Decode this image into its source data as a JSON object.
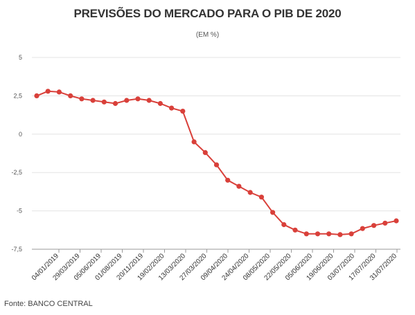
{
  "header": {
    "title": "PREVISÕES DO MERCADO PARA O PIB DE 2020",
    "subtitle": "(EM %)"
  },
  "footer": {
    "source": "Fonte: BANCO CENTRAL"
  },
  "colors": {
    "line": "#d9403a",
    "grid": "#e3e3e3",
    "axis": "#999999"
  },
  "chart_data": {
    "type": "line",
    "title": "PREVISÕES DO MERCADO PARA O PIB DE 2020",
    "subtitle": "(EM %)",
    "ylim": [
      -7.5,
      5
    ],
    "yticks": [
      5,
      2.5,
      0,
      -2.5,
      -5,
      -7.5
    ],
    "ytick_labels": [
      "5",
      "2,5",
      "0",
      "-2,5",
      "-5",
      "-7,5"
    ],
    "xtick_labels": [
      "04/01/2019",
      "29/03/2019",
      "05/06/2019",
      "01/08/2019",
      "20/11/2019",
      "19/02/2020",
      "13/03/2020",
      "27/03/2020",
      "09/04/2020",
      "24/04/2020",
      "08/05/2020",
      "22/05/2020",
      "05/06/2020",
      "19/06/2020",
      "03/07/2020",
      "17/07/2020",
      "31/07/2020"
    ],
    "grid": true,
    "series": [
      {
        "values": [
          2.5,
          2.8,
          2.75,
          2.5,
          2.3,
          2.2,
          2.1,
          2.0,
          2.2,
          2.3,
          2.2,
          2.0,
          1.7,
          1.5,
          -0.5,
          -1.2,
          -2.0,
          -3.0,
          -3.4,
          -3.8,
          -4.1,
          -5.1,
          -5.9,
          -6.25,
          -6.5,
          -6.5,
          -6.5,
          -6.55,
          -6.5,
          -6.15,
          -5.95,
          -5.8,
          -5.65
        ]
      }
    ]
  }
}
